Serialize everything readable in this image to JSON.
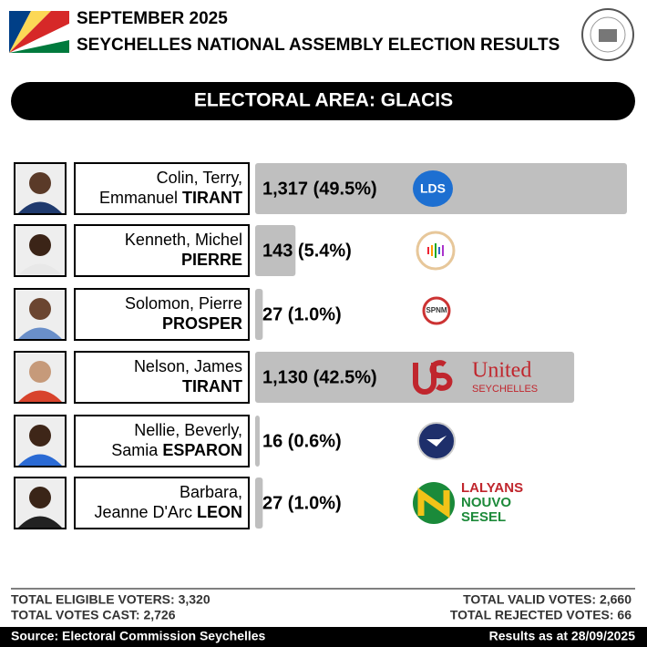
{
  "header": {
    "date": "SEPTEMBER 2025",
    "title": "SEYCHELLES NATIONAL ASSEMBLY ELECTION RESULTS",
    "area": "ELECTORAL AREA: GLACIS"
  },
  "chart_data": {
    "type": "bar",
    "orientation": "horizontal",
    "color": "#bfbfbf",
    "candidates": [
      {
        "line1": "Colin, Terry,",
        "line2": "Emmanuel",
        "surname": "TIRANT"
      },
      {
        "line1": "Kenneth, Michel",
        "surname": "PIERRE"
      },
      {
        "line1": "Solomon, Pierre",
        "surname": "PROSPER"
      },
      {
        "line1": "Nelson, James",
        "surname": "TIRANT"
      },
      {
        "line1": "Nellie, Beverly,",
        "line2": "Samia",
        "surname": "ESPARON"
      },
      {
        "line1": "Barbara,",
        "line2": "Jeanne D'Arc",
        "surname": "LEON"
      }
    ],
    "values": [
      1317,
      143,
      27,
      1130,
      16,
      27
    ],
    "value_labels": [
      "1,317 (49.5%)",
      "143 (5.4%)",
      "27 (1.0%)",
      "1,130 (42.5%)",
      "16 (0.6%)",
      "27 (1.0%)"
    ],
    "party_logos": [
      [
        "LDS"
      ],
      [],
      [
        "SPNM"
      ],
      [
        "United",
        "SEYCHELLES"
      ],
      [],
      [
        "LALYANS",
        "NOUVO",
        "SESEL"
      ]
    ]
  },
  "footer": {
    "eligible": "TOTAL ELIGIBLE VOTERS: 3,320",
    "cast": "TOTAL VOTES CAST: 2,726",
    "valid": "TOTAL VALID VOTES: 2,660",
    "rejected": "TOTAL REJECTED VOTES: 66",
    "source": "Source: Electoral Commission Seychelles",
    "asof": "Results as at 28/09/2025"
  }
}
